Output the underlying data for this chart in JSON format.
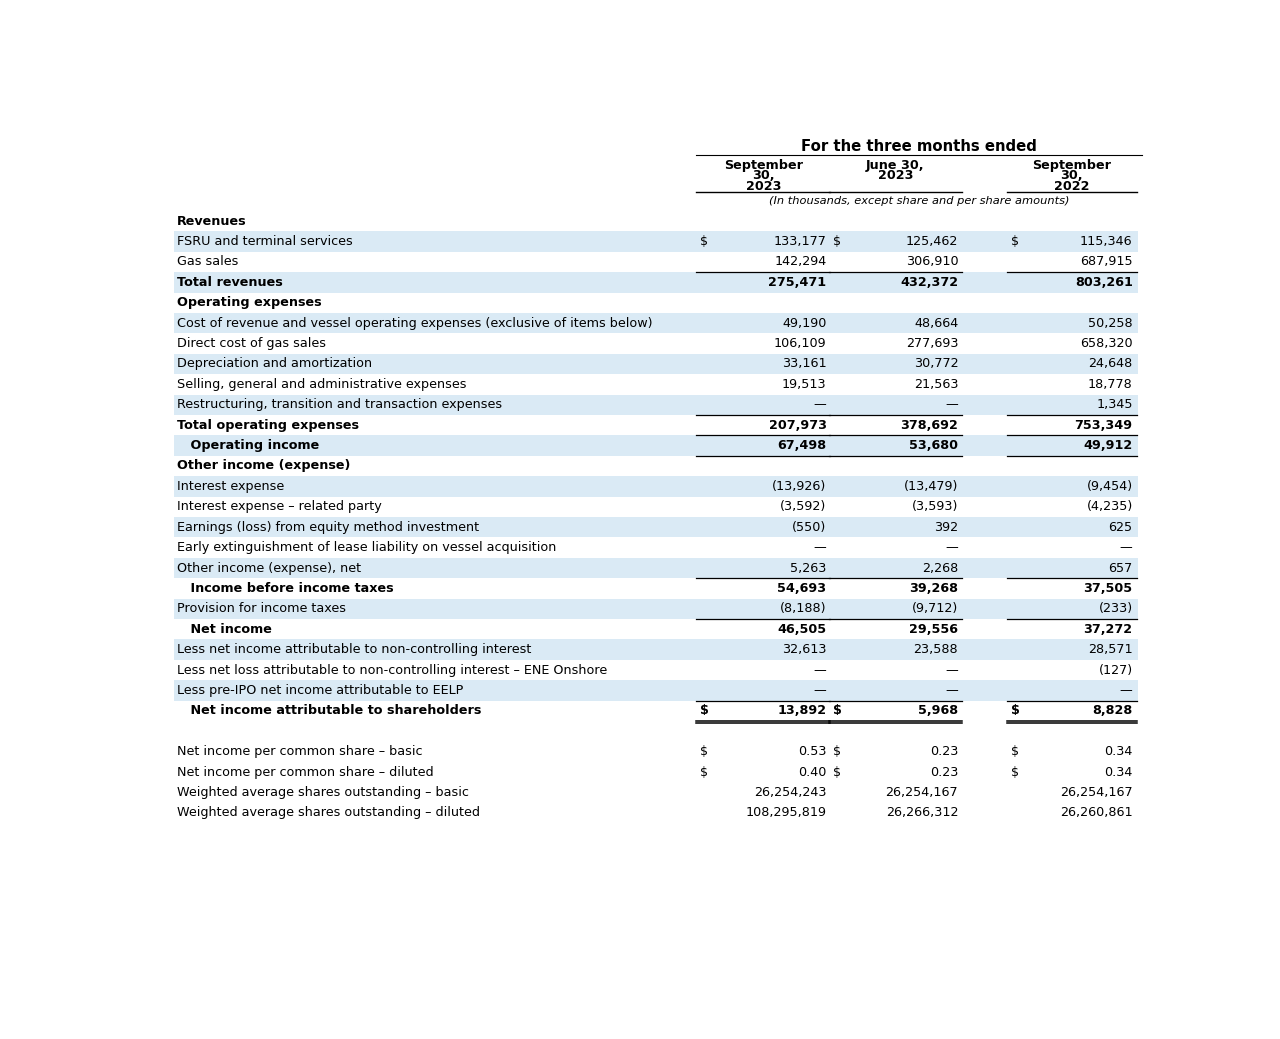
{
  "title_line1": "For the three months ended",
  "subtitle": "(In thousands, except share and per share amounts)",
  "col_header_1a": "September",
  "col_header_1b": "30,",
  "col_header_1c": "2023",
  "col_header_2a": "June 30,",
  "col_header_2b": "2023",
  "col_header_3a": "September",
  "col_header_3b": "30,",
  "col_header_3c": "2022",
  "rows": [
    {
      "label": "Revenues",
      "values": [
        "",
        "",
        ""
      ],
      "style": "section_header",
      "dollar_prefix": [
        "",
        "",
        ""
      ]
    },
    {
      "label": "FSRU and terminal services",
      "values": [
        "133,177",
        "125,462",
        "115,346"
      ],
      "style": "shaded",
      "dollar_prefix": [
        "$",
        "$",
        "$"
      ]
    },
    {
      "label": "Gas sales",
      "values": [
        "142,294",
        "306,910",
        "687,915"
      ],
      "style": "white",
      "dollar_prefix": [
        "",
        "",
        ""
      ]
    },
    {
      "label": "Total revenues",
      "values": [
        "275,471",
        "432,372",
        "803,261"
      ],
      "style": "shaded_bold",
      "dollar_prefix": [
        "",
        "",
        ""
      ],
      "top_border": true
    },
    {
      "label": "Operating expenses",
      "values": [
        "",
        "",
        ""
      ],
      "style": "section_header",
      "dollar_prefix": [
        "",
        "",
        ""
      ]
    },
    {
      "label": "Cost of revenue and vessel operating expenses (exclusive of items below)",
      "values": [
        "49,190",
        "48,664",
        "50,258"
      ],
      "style": "shaded",
      "dollar_prefix": [
        "",
        "",
        ""
      ]
    },
    {
      "label": "Direct cost of gas sales",
      "values": [
        "106,109",
        "277,693",
        "658,320"
      ],
      "style": "white",
      "dollar_prefix": [
        "",
        "",
        ""
      ]
    },
    {
      "label": "Depreciation and amortization",
      "values": [
        "33,161",
        "30,772",
        "24,648"
      ],
      "style": "shaded",
      "dollar_prefix": [
        "",
        "",
        ""
      ]
    },
    {
      "label": "Selling, general and administrative expenses",
      "values": [
        "19,513",
        "21,563",
        "18,778"
      ],
      "style": "white",
      "dollar_prefix": [
        "",
        "",
        ""
      ]
    },
    {
      "label": "Restructuring, transition and transaction expenses",
      "values": [
        "—",
        "—",
        "1,345"
      ],
      "style": "shaded",
      "dollar_prefix": [
        "",
        "",
        ""
      ],
      "bottom_border": true
    },
    {
      "label": "Total operating expenses",
      "values": [
        "207,973",
        "378,692",
        "753,349"
      ],
      "style": "white_bold",
      "dollar_prefix": [
        "",
        "",
        ""
      ],
      "bottom_border": true
    },
    {
      "label": "   Operating income",
      "values": [
        "67,498",
        "53,680",
        "49,912"
      ],
      "style": "shaded_bold",
      "dollar_prefix": [
        "",
        "",
        ""
      ],
      "bottom_border": true
    },
    {
      "label": "Other income (expense)",
      "values": [
        "",
        "",
        ""
      ],
      "style": "section_header",
      "dollar_prefix": [
        "",
        "",
        ""
      ]
    },
    {
      "label": "Interest expense",
      "values": [
        "(13,926)",
        "(13,479)",
        "(9,454)"
      ],
      "style": "shaded",
      "dollar_prefix": [
        "",
        "",
        ""
      ]
    },
    {
      "label": "Interest expense – related party",
      "values": [
        "(3,592)",
        "(3,593)",
        "(4,235)"
      ],
      "style": "white",
      "dollar_prefix": [
        "",
        "",
        ""
      ]
    },
    {
      "label": "Earnings (loss) from equity method investment",
      "values": [
        "(550)",
        "392",
        "625"
      ],
      "style": "shaded",
      "dollar_prefix": [
        "",
        "",
        ""
      ]
    },
    {
      "label": "Early extinguishment of lease liability on vessel acquisition",
      "values": [
        "—",
        "—",
        "—"
      ],
      "style": "white",
      "dollar_prefix": [
        "",
        "",
        ""
      ]
    },
    {
      "label": "Other income (expense), net",
      "values": [
        "5,263",
        "2,268",
        "657"
      ],
      "style": "shaded",
      "dollar_prefix": [
        "",
        "",
        ""
      ],
      "bottom_border": true
    },
    {
      "label": "   Income before income taxes",
      "values": [
        "54,693",
        "39,268",
        "37,505"
      ],
      "style": "white_bold",
      "dollar_prefix": [
        "",
        "",
        ""
      ]
    },
    {
      "label": "Provision for income taxes",
      "values": [
        "(8,188)",
        "(9,712)",
        "(233)"
      ],
      "style": "shaded",
      "dollar_prefix": [
        "",
        "",
        ""
      ],
      "bottom_border": true
    },
    {
      "label": "   Net income",
      "values": [
        "46,505",
        "29,556",
        "37,272"
      ],
      "style": "white_bold",
      "dollar_prefix": [
        "",
        "",
        ""
      ]
    },
    {
      "label": "Less net income attributable to non-controlling interest",
      "values": [
        "32,613",
        "23,588",
        "28,571"
      ],
      "style": "shaded",
      "dollar_prefix": [
        "",
        "",
        ""
      ]
    },
    {
      "label": "Less net loss attributable to non-controlling interest – ENE Onshore",
      "values": [
        "—",
        "—",
        "(127)"
      ],
      "style": "white",
      "dollar_prefix": [
        "",
        "",
        ""
      ]
    },
    {
      "label": "Less pre-IPO net income attributable to EELP",
      "values": [
        "—",
        "—",
        "—"
      ],
      "style": "shaded",
      "dollar_prefix": [
        "",
        "",
        ""
      ],
      "bottom_border": true
    },
    {
      "label": "   Net income attributable to shareholders",
      "values": [
        "13,892",
        "5,968",
        "8,828"
      ],
      "style": "white_bold",
      "dollar_prefix": [
        "$",
        "$",
        "$"
      ],
      "double_bottom_border": true
    },
    {
      "label": "",
      "values": [
        "",
        "",
        ""
      ],
      "style": "spacer",
      "dollar_prefix": [
        "",
        "",
        ""
      ]
    },
    {
      "label": "Net income per common share – basic",
      "values": [
        "0.53",
        "0.23",
        "0.34"
      ],
      "style": "white",
      "dollar_prefix": [
        "$",
        "$",
        "$"
      ]
    },
    {
      "label": "Net income per common share – diluted",
      "values": [
        "0.40",
        "0.23",
        "0.34"
      ],
      "style": "white",
      "dollar_prefix": [
        "$",
        "$",
        "$"
      ]
    },
    {
      "label": "Weighted average shares outstanding – basic",
      "values": [
        "26,254,243",
        "26,254,167",
        "26,254,167"
      ],
      "style": "white",
      "dollar_prefix": [
        "",
        "",
        ""
      ]
    },
    {
      "label": "Weighted average shares outstanding – diluted",
      "values": [
        "108,295,819",
        "26,266,312",
        "26,260,861"
      ],
      "style": "white",
      "dollar_prefix": [
        "",
        "",
        ""
      ]
    }
  ],
  "shaded_color": "#daeaf5",
  "white_color": "#ffffff",
  "font_size": 9.2,
  "bold_font_size": 9.2,
  "header_font_size": 9.5
}
